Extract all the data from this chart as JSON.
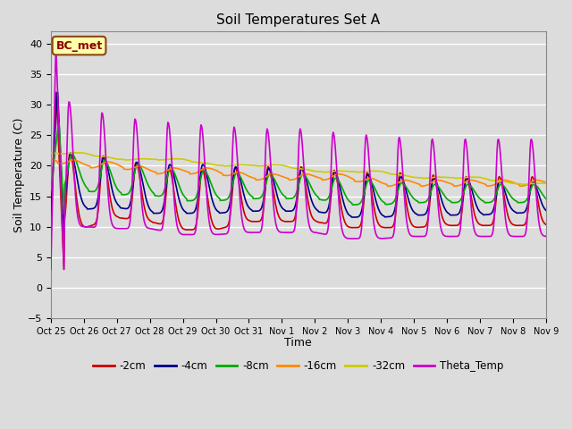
{
  "title": "Soil Temperatures Set A",
  "xlabel": "Time",
  "ylabel": "Soil Temperature (C)",
  "ylim": [
    -5,
    42
  ],
  "yticks": [
    -5,
    0,
    5,
    10,
    15,
    20,
    25,
    30,
    35,
    40
  ],
  "background_color": "#dcdcdc",
  "plot_bg_color": "#dcdcdc",
  "grid_color": "white",
  "annotation_text": "BC_met",
  "annotation_box_color": "#ffffaa",
  "annotation_box_edge": "#8B4513",
  "x_tick_labels": [
    "Oct 25",
    "Oct 26",
    "Oct 27",
    "Oct 28",
    "Oct 29",
    "Oct 30",
    "Oct 31",
    "Nov 1",
    "Nov 2",
    "Nov 3",
    "Nov 4",
    "Nov 5",
    "Nov 6",
    "Nov 7",
    "Nov 8",
    "Nov 9"
  ],
  "series": {
    "-2cm": {
      "color": "#cc0000",
      "lw": 1.2
    },
    "-4cm": {
      "color": "#000088",
      "lw": 1.2
    },
    "-8cm": {
      "color": "#00aa00",
      "lw": 1.2
    },
    "-16cm": {
      "color": "#ff8800",
      "lw": 1.2
    },
    "-32cm": {
      "color": "#cccc00",
      "lw": 1.2
    },
    "Theta_Temp": {
      "color": "#cc00cc",
      "lw": 1.2
    }
  },
  "legend_order": [
    "-2cm",
    "-4cm",
    "-8cm",
    "-16cm",
    "-32cm",
    "Theta_Temp"
  ]
}
